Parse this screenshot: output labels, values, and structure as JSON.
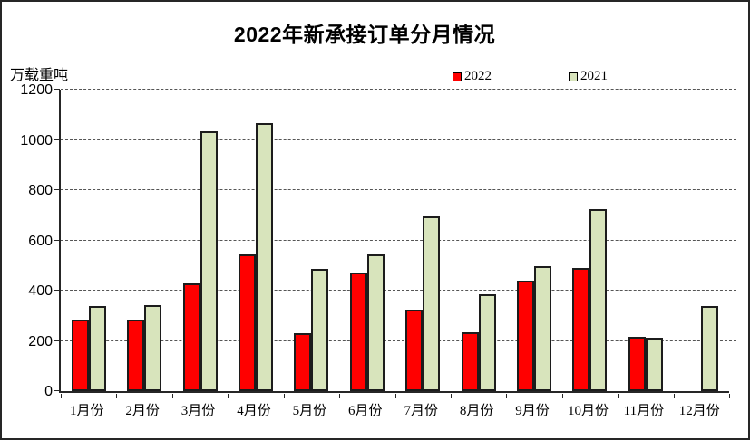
{
  "chart_data": {
    "type": "bar",
    "title": "2022年新承接订单分月情况",
    "unit_label": "万载重吨",
    "categories": [
      "1月份",
      "2月份",
      "3月份",
      "4月份",
      "5月份",
      "6月份",
      "7月份",
      "8月份",
      "9月份",
      "10月份",
      "11月份",
      "12月份"
    ],
    "series": [
      {
        "name": "2022",
        "color": "#FF0000",
        "values": [
          284,
          283,
          429,
          544,
          229,
          473,
          326,
          233,
          438,
          489,
          218,
          0
        ]
      },
      {
        "name": "2021",
        "color": "#D8E4BC",
        "values": [
          337,
          342,
          1035,
          1065,
          485,
          545,
          695,
          386,
          498,
          725,
          214,
          339
        ]
      }
    ],
    "ylim": [
      0,
      1200
    ],
    "yticks": [
      0,
      200,
      400,
      600,
      800,
      1000,
      1200
    ],
    "grid": "horizontal-dashed",
    "legend_position": "top-center-right",
    "bar_border_color": "#1c1c1c",
    "background": "#ffffff"
  }
}
